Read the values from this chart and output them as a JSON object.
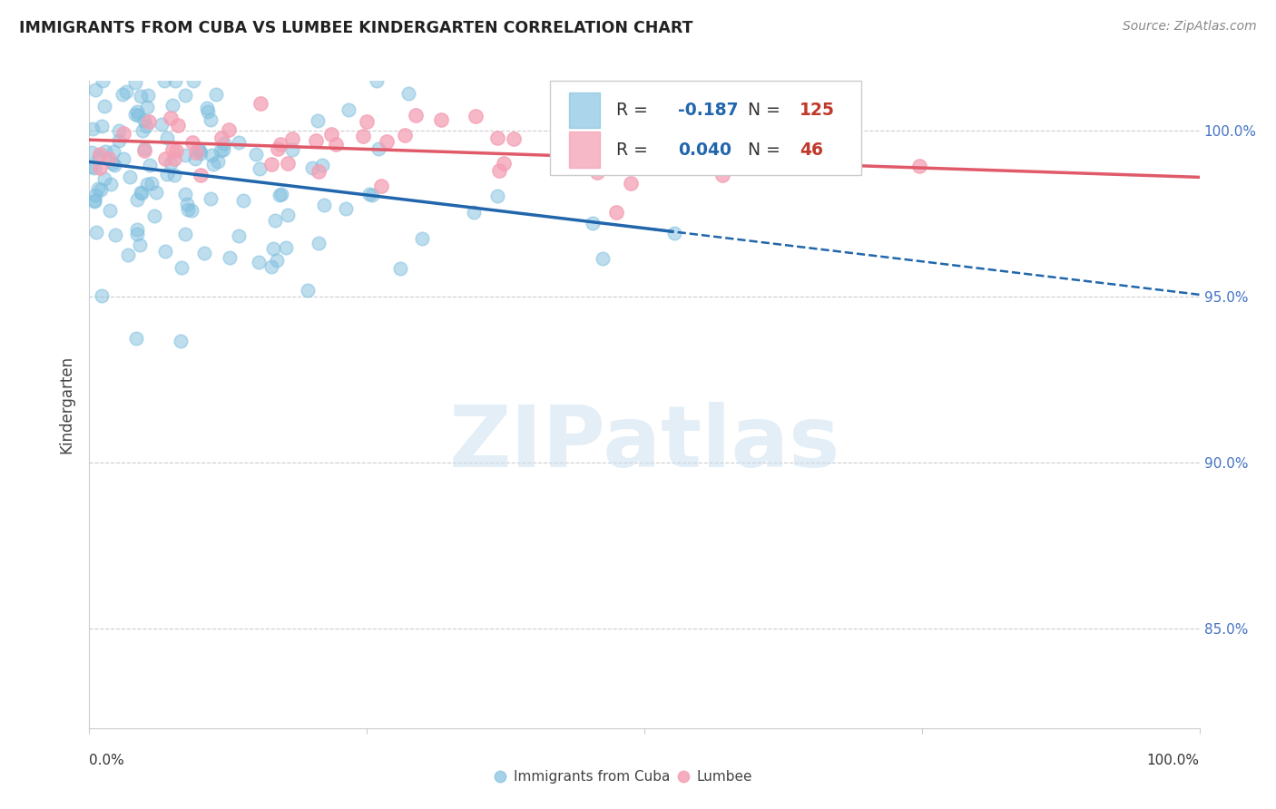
{
  "title": "IMMIGRANTS FROM CUBA VS LUMBEE KINDERGARTEN CORRELATION CHART",
  "source": "Source: ZipAtlas.com",
  "ylabel": "Kindergarten",
  "legend_label1": "Immigrants from Cuba",
  "legend_label2": "Lumbee",
  "R1": -0.187,
  "N1": 125,
  "R2": 0.04,
  "N2": 46,
  "xlim": [
    0.0,
    100.0
  ],
  "ylim": [
    82.0,
    101.5
  ],
  "yticks": [
    85.0,
    90.0,
    95.0,
    100.0
  ],
  "ytick_labels": [
    "85.0%",
    "90.0%",
    "95.0%",
    "100.0%"
  ],
  "color_blue": "#7fbfdf",
  "color_pink": "#f4a0b5",
  "color_blue_line": "#2166ac",
  "color_pink_line": "#e05a6a",
  "seed_blue": 10,
  "seed_pink": 20
}
